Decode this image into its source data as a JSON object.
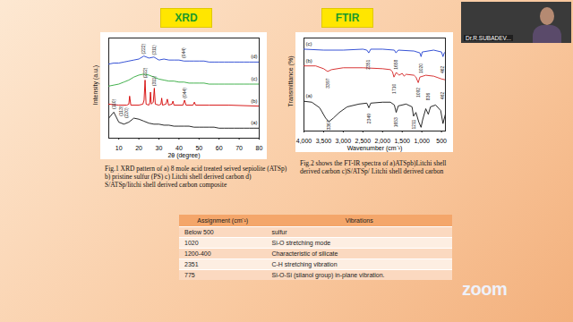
{
  "chart_data": [
    {
      "type": "line",
      "title": "XRD",
      "xlabel": "2θ (degree)",
      "ylabel": "Intensity (a.u.)",
      "xlim": [
        5,
        80
      ],
      "xticks": [
        10,
        20,
        30,
        40,
        50,
        60,
        70,
        80
      ],
      "ylim": [
        0,
        100
      ],
      "tick_labels": "x",
      "series": [
        {
          "name": "(a)",
          "color": "#111111",
          "x": [
            5,
            7.5,
            10,
            12.5,
            15,
            17.5,
            20,
            22.5,
            25,
            27.5,
            30,
            32.5,
            35,
            37.5,
            40,
            42.5,
            45,
            47.5,
            50,
            52.5,
            55,
            57.5,
            60,
            62.5,
            65,
            67.5,
            70,
            72.5,
            75,
            77.5,
            80
          ],
          "values": [
            20,
            26,
            16,
            14,
            16,
            20,
            19,
            17,
            15,
            14,
            14,
            13,
            13,
            12,
            12,
            12,
            12,
            11,
            11,
            11,
            11,
            11,
            10,
            10,
            10,
            10,
            10,
            10,
            10,
            10,
            10
          ]
        },
        {
          "name": "(b)",
          "color": "#d40000",
          "x": [
            5,
            10,
            14,
            15,
            15.4,
            16,
            20,
            22,
            22.6,
            23.1,
            23.6,
            25,
            25.5,
            25.8,
            26.2,
            27.2,
            27.7,
            28.2,
            30,
            31,
            31.4,
            31.8,
            33.5,
            34.2,
            34.8,
            36.5,
            37,
            37.5,
            42,
            42.8,
            43.5,
            47,
            47.7,
            48.3,
            55,
            65,
            80
          ],
          "values": [
            34,
            33,
            33,
            34,
            42,
            33,
            33,
            34,
            38,
            58,
            34,
            33,
            36,
            46,
            34,
            36,
            50,
            34,
            33,
            34,
            40,
            33,
            34,
            39,
            33,
            34,
            37,
            33,
            33,
            38,
            33,
            33,
            36,
            33,
            33,
            33,
            32
          ]
        },
        {
          "name": "(c)",
          "color": "#2fa83a",
          "x": [
            5,
            7.5,
            10,
            12.5,
            15,
            17.5,
            20,
            22.5,
            25,
            27.5,
            30,
            32.5,
            35,
            37.5,
            40,
            42.5,
            45,
            47.5,
            50,
            52.5,
            55,
            57.5,
            60,
            62.5,
            65,
            67.5,
            70,
            72.5,
            75,
            77.5,
            80
          ],
          "values": [
            52,
            53,
            54,
            56,
            58,
            61,
            63,
            64,
            63,
            61,
            59,
            58,
            57,
            57,
            56,
            56,
            55,
            55,
            55,
            55,
            54,
            54,
            54,
            54,
            54,
            54,
            54,
            54,
            54,
            54,
            54
          ]
        },
        {
          "name": "(d)",
          "color": "#2040d0",
          "x": [
            5,
            7.5,
            10,
            12.5,
            15,
            17.5,
            20,
            22.5,
            25,
            27.5,
            30,
            32.5,
            35,
            37.5,
            40,
            42.5,
            45,
            47.5,
            50,
            52.5,
            55,
            57.5,
            60,
            62.5,
            65,
            67.5,
            70,
            72.5,
            75,
            77.5,
            80
          ],
          "values": [
            74,
            75,
            75,
            76,
            77,
            78,
            79,
            82,
            80,
            81,
            78,
            79,
            78,
            78,
            78,
            77,
            77,
            77,
            77,
            77,
            76,
            76,
            76,
            76,
            76,
            76,
            76,
            76,
            76,
            76,
            76
          ]
        }
      ],
      "annotations": [
        {
          "x": 7.5,
          "y": 29,
          "text": "(110)"
        },
        {
          "x": 11,
          "y": 22,
          "text": "(113)"
        },
        {
          "x": 14,
          "y": 20,
          "text": "(220)"
        },
        {
          "x": 23.1,
          "y": 60,
          "text": "(222)"
        },
        {
          "x": 27.7,
          "y": 52,
          "text": "(311)"
        },
        {
          "x": 42.8,
          "y": 40,
          "text": "(044)"
        },
        {
          "x": 22.5,
          "y": 84,
          "text": "(222)"
        },
        {
          "x": 27.5,
          "y": 83,
          "text": "(311)"
        },
        {
          "x": 42.5,
          "y": 80,
          "text": "(044)"
        }
      ],
      "caption": "Fig.1 XRD pattern of a) 8 mole acid treated seived sepiolite (ATSp) b) pristine sulfur (PS) c) Litchi shell derived carbon d) S/ATSp/litchi shell derived carbon composite"
    },
    {
      "type": "line",
      "title": "FTIR",
      "xlabel": "Wavenumber (cm⁻¹)",
      "ylabel": "Transmittance (%)",
      "xlim": [
        4000,
        400
      ],
      "xticks": [
        4000,
        3500,
        3000,
        2500,
        2000,
        1500,
        1000,
        500
      ],
      "ylim": [
        0,
        100
      ],
      "tick_labels": "x",
      "series": [
        {
          "name": "(a)",
          "color": "#111111",
          "x": [
            4000,
            3800,
            3600,
            3450,
            3367,
            3250,
            3100,
            2900,
            2600,
            2400,
            2349,
            2300,
            2000,
            1800,
            1700,
            1653,
            1600,
            1400,
            1250,
            1211,
            1150,
            1080,
            1020,
            980,
            900,
            836,
            780,
            650,
            520,
            462,
            420,
            400
          ],
          "values": [
            32,
            31,
            25,
            14,
            10,
            14,
            20,
            26,
            29,
            30,
            25,
            30,
            31,
            31,
            28,
            20,
            27,
            29,
            26,
            16,
            20,
            10,
            4,
            12,
            24,
            18,
            26,
            28,
            22,
            8,
            15,
            18
          ]
        },
        {
          "name": "(b)",
          "color": "#d42020",
          "x": [
            4000,
            3700,
            3500,
            3397,
            3300,
            3000,
            2500,
            2000,
            1800,
            1750,
            1710,
            1650,
            1580,
            1500,
            1450,
            1400,
            1200,
            1150,
            1092,
            1050,
            900,
            700,
            500,
            400
          ],
          "values": [
            70,
            70,
            67,
            64,
            66,
            68,
            68,
            67,
            66,
            64,
            58,
            63,
            60,
            62,
            59,
            61,
            60,
            58,
            52,
            58,
            60,
            59,
            56,
            55
          ]
        },
        {
          "name": "(c)",
          "color": "#2040d0",
          "x": [
            4000,
            3500,
            3000,
            2500,
            2400,
            2351,
            2300,
            2000,
            1700,
            1658,
            1600,
            1200,
            1050,
            1020,
            990,
            700,
            500,
            462,
            430,
            400
          ],
          "values": [
            88,
            87,
            87,
            88,
            87,
            84,
            88,
            88,
            87,
            84,
            87,
            86,
            84,
            80,
            85,
            87,
            85,
            80,
            84,
            85
          ]
        }
      ],
      "annotations": [
        {
          "x": 3367,
          "y": 1,
          "text": "3367"
        },
        {
          "x": 2349,
          "y": 8,
          "text": "2349"
        },
        {
          "x": 1653,
          "y": 4,
          "text": "1653"
        },
        {
          "x": 1211,
          "y": 2,
          "text": "1211"
        },
        {
          "x": 836,
          "y": 33,
          "text": "836"
        },
        {
          "x": 462,
          "y": 34,
          "text": "462"
        },
        {
          "x": 3397,
          "y": 46,
          "text": "3397"
        },
        {
          "x": 1710,
          "y": 40,
          "text": "1710"
        },
        {
          "x": 1092,
          "y": 36,
          "text": "1092"
        },
        {
          "x": 2351,
          "y": 66,
          "text": "2351"
        },
        {
          "x": 1658,
          "y": 66,
          "text": "1658"
        },
        {
          "x": 1020,
          "y": 62,
          "text": "1020"
        },
        {
          "x": 462,
          "y": 62,
          "text": "462"
        }
      ],
      "caption": "Fig.2 shows the FT-IR spectra of a)ATSpb)Litchi shell derived carbon c)S/ATSp/ Litchi shell derived carbon"
    }
  ],
  "table": {
    "header": [
      "Assignment (cm⁻¹)",
      "Vibrations"
    ],
    "rows": [
      [
        "Below 500",
        "sulfur"
      ],
      [
        "1020",
        "Si-O stretching mode"
      ],
      [
        "1200-400",
        "Characteristic of silicate"
      ],
      [
        "2351",
        "C-H stretching vibration"
      ],
      [
        "775",
        "Si-O-Si (silanol group) in-plane vibration."
      ]
    ]
  },
  "presenter": "Dr.R.SUBADEV...",
  "logo": "zoom"
}
